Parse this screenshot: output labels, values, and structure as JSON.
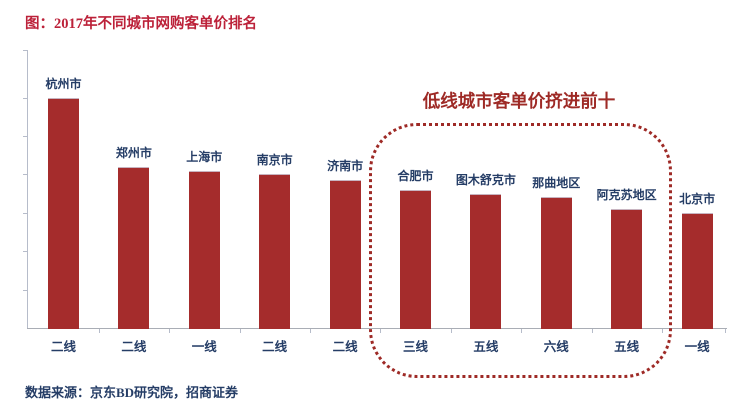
{
  "page": {
    "title": "图：2017年不同城市网购客单价排名",
    "source": "数据来源：京东BD研究院，招商证券"
  },
  "annotation": {
    "text": "低线城市客单价挤进前十"
  },
  "colors": {
    "bar": "#a52c2c",
    "title_red": "#bc2139",
    "annotation_red": "#9e2a26",
    "text_navy": "#253d66",
    "axis_gray": "#a9adb5"
  },
  "chart_data": {
    "type": "bar",
    "title": "2017年不同城市网购客单价排名",
    "categories": [
      "杭州市",
      "郑州市",
      "上海市",
      "南京市",
      "济南市",
      "合肥市",
      "图木舒克市",
      "那曲地区",
      "阿克苏地区",
      "北京市"
    ],
    "tier_labels": [
      "二线",
      "二线",
      "一线",
      "二线",
      "二线",
      "三线",
      "五线",
      "六线",
      "五线",
      "一线"
    ],
    "values": [
      6.0,
      4.2,
      4.1,
      4.0,
      3.85,
      3.6,
      3.5,
      3.4,
      3.1,
      3.0
    ],
    "value_note": "y-axis has unlabeled ticks; values estimated in tick units from gridline spacing",
    "xlabel": "",
    "ylabel": "",
    "ylim": [
      0,
      7.2
    ],
    "y_tick_step": 1,
    "grid": false,
    "legend": false,
    "bar_color": "#a52c2c",
    "highlighted_categories": [
      "合肥市",
      "图木舒克市",
      "那曲地区",
      "阿克苏地区"
    ],
    "annotation": "低线城市客单价挤进前十"
  }
}
